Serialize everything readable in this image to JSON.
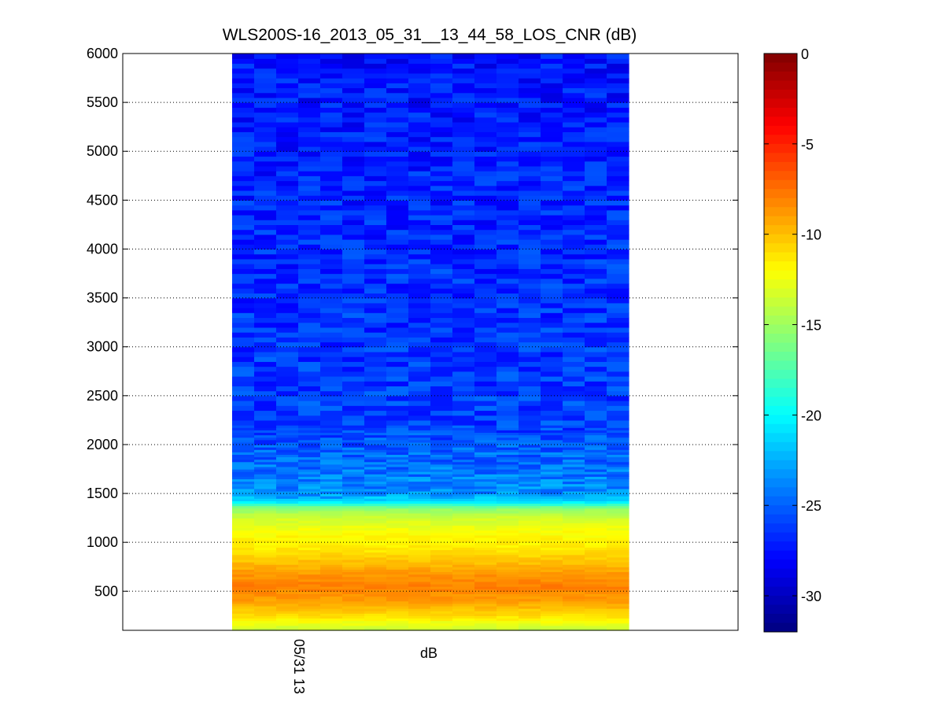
{
  "chart_data": {
    "type": "heatmap",
    "title": "WLS200S-16_2013_05_31__13_44_58_LOS_CNR (dB)",
    "xlabel": "dB",
    "ylabel": "",
    "x_tick_labels": [
      "05/31 13"
    ],
    "ylim": [
      100,
      6000
    ],
    "y_ticks": [
      500,
      1000,
      1500,
      2000,
      2500,
      3000,
      3500,
      4000,
      4500,
      5000,
      5500,
      6000
    ],
    "grid": true,
    "n_time_bins": 18,
    "range_bins_m": [
      100,
      6000
    ],
    "cnr_profile_db": [
      {
        "range": 100,
        "value": -14
      },
      {
        "range": 250,
        "value": -11
      },
      {
        "range": 400,
        "value": -9
      },
      {
        "range": 550,
        "value": -8
      },
      {
        "range": 650,
        "value": -8.5
      },
      {
        "range": 800,
        "value": -10
      },
      {
        "range": 950,
        "value": -11.5
      },
      {
        "range": 1100,
        "value": -12
      },
      {
        "range": 1250,
        "value": -13.5
      },
      {
        "range": 1350,
        "value": -15.5
      },
      {
        "range": 1420,
        "value": -21
      },
      {
        "range": 1500,
        "value": -23.5
      },
      {
        "range": 1800,
        "value": -24.5
      },
      {
        "range": 2200,
        "value": -26
      },
      {
        "range": 6000,
        "value": -27.5
      }
    ],
    "colorbar": {
      "min": -32,
      "max": 0,
      "ticks": [
        0,
        -5,
        -10,
        -15,
        -20,
        -25,
        -30
      ],
      "colormap": "jet"
    }
  }
}
